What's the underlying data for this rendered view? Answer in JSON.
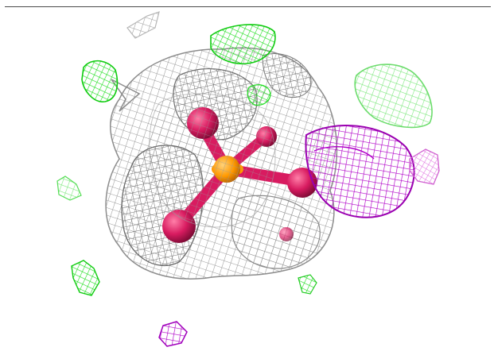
{
  "colors": {
    "background": "#ffffff",
    "frame_line": "#4a4a4a",
    "grey_mesh": "#a8a8a8",
    "grey_mesh_dark": "#777777",
    "green_mesh": "#22dd22",
    "light_green_mesh": "#88ee88",
    "magenta_mesh": "#b000c8",
    "pink_mesh": "#e070e0",
    "oxygen_atom": "#d81b60",
    "phosphorus_atom": "#ff9900"
  }
}
